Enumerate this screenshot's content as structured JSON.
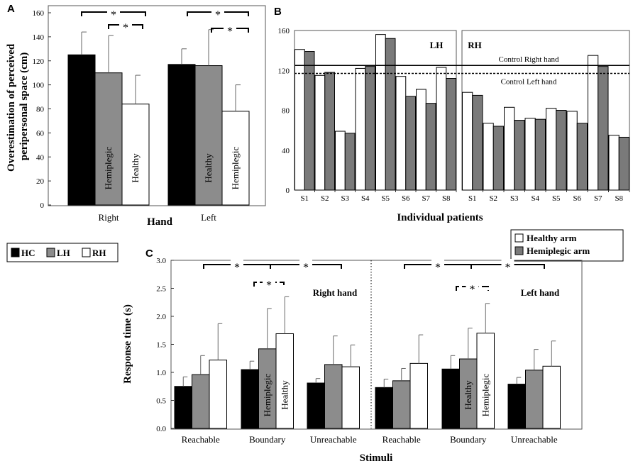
{
  "colors": {
    "HC": "#000000",
    "LH": "#8c8c8c",
    "RH": "#ffffff",
    "healthy_arm": "#ffffff",
    "hemiplegic_arm": "#7a7a7a"
  },
  "legend_groups": [
    {
      "key": "HC",
      "label": "HC"
    },
    {
      "key": "LH",
      "label": "LH"
    },
    {
      "key": "RH",
      "label": "RH"
    }
  ],
  "legend_arms": [
    {
      "key": "healthy_arm",
      "label": "Healthy arm"
    },
    {
      "key": "hemiplegic_arm",
      "label": "Hemiplegic arm"
    }
  ],
  "chart_data": [
    {
      "panel": "A",
      "type": "bar",
      "ylabel": "Overestimation of perceived peripersonal space (cm)",
      "ylabel_lines": [
        "Overestimation of perceived",
        "peripersonal space (cm)"
      ],
      "xlabel": "Hand",
      "categories": [
        "Right",
        "Left"
      ],
      "ylim": [
        0,
        160
      ],
      "yticks": [
        "0",
        "20",
        "40",
        "60",
        "80",
        "100",
        "120",
        "140",
        "160"
      ],
      "series": [
        {
          "name": "HC",
          "values": [
            125,
            117
          ],
          "errors": [
            19,
            13
          ]
        },
        {
          "name": "LH",
          "values": [
            110,
            116
          ],
          "errors": [
            31,
            30
          ]
        },
        {
          "name": "RH",
          "values": [
            84,
            78
          ],
          "errors": [
            24,
            22
          ]
        }
      ],
      "bar_text": [
        [
          "",
          "Hemiplegic",
          "Healthy"
        ],
        [
          "",
          "Healthy",
          "Hemiplegic"
        ]
      ],
      "significance": [
        "*",
        "*",
        "*",
        "*"
      ]
    },
    {
      "panel": "B",
      "type": "bar",
      "xlabel": "Individual patients",
      "ylim": [
        0,
        160
      ],
      "yticks": [
        "0",
        "40",
        "80",
        "120",
        "160"
      ],
      "groups": [
        {
          "label": "LH",
          "categories": [
            "S1",
            "S2",
            "S3",
            "S4",
            "S5",
            "S6",
            "S7",
            "S8"
          ],
          "series": [
            {
              "name": "Healthy arm",
              "values": [
                141,
                115,
                59,
                122,
                156,
                114,
                101,
                123
              ]
            },
            {
              "name": "Hemiplegic arm",
              "values": [
                139,
                118,
                57,
                124,
                152,
                94,
                87,
                112
              ]
            }
          ]
        },
        {
          "label": "RH",
          "categories": [
            "S1",
            "S2",
            "S3",
            "S4",
            "S5",
            "S6",
            "S7",
            "S8"
          ],
          "series": [
            {
              "name": "Healthy arm",
              "values": [
                98,
                67,
                83,
                72,
                82,
                79,
                135,
                55
              ]
            },
            {
              "name": "Hemiplegic arm",
              "values": [
                95,
                64,
                70,
                71,
                80,
                67,
                124,
                53
              ]
            }
          ]
        }
      ],
      "reference_lines": [
        {
          "label": "Control Right hand",
          "value": 125,
          "style": "solid"
        },
        {
          "label": "Control Left hand",
          "value": 117,
          "style": "dashed"
        }
      ]
    },
    {
      "panel": "C",
      "type": "bar",
      "ylabel": "Response time (s)",
      "xlabel": "Stimuli",
      "ylim": [
        0,
        3.0
      ],
      "yticks": [
        "0.0",
        "0.5",
        "1.0",
        "1.5",
        "2.0",
        "2.5",
        "3.0"
      ],
      "groups": [
        {
          "label": "Right hand",
          "categories": [
            "Reachable",
            "Boundary",
            "Unreachable"
          ],
          "series": [
            {
              "name": "HC",
              "values": [
                0.75,
                1.05,
                0.81
              ],
              "errors": [
                0.17,
                0.15,
                0.08
              ]
            },
            {
              "name": "LH",
              "values": [
                0.96,
                1.42,
                1.14
              ],
              "errors": [
                0.34,
                0.72,
                0.51
              ]
            },
            {
              "name": "RH",
              "values": [
                1.22,
                1.69,
                1.1
              ],
              "errors": [
                0.65,
                0.66,
                0.39
              ]
            }
          ],
          "bar_text": [
            [
              "",
              "",
              ""
            ],
            [
              "",
              "Hemiplegic",
              "Healthy"
            ],
            [
              "",
              "",
              ""
            ]
          ]
        },
        {
          "label": "Left hand",
          "categories": [
            "Reachable",
            "Boundary",
            "Unreachable"
          ],
          "series": [
            {
              "name": "HC",
              "values": [
                0.73,
                1.06,
                0.79
              ],
              "errors": [
                0.15,
                0.24,
                0.12
              ]
            },
            {
              "name": "LH",
              "values": [
                0.85,
                1.24,
                1.04
              ],
              "errors": [
                0.22,
                0.55,
                0.37
              ]
            },
            {
              "name": "RH",
              "values": [
                1.16,
                1.7,
                1.11
              ],
              "errors": [
                0.51,
                0.53,
                0.45
              ]
            }
          ],
          "bar_text": [
            [
              "",
              "",
              ""
            ],
            [
              "",
              "Healthy",
              "Hemiplegic"
            ],
            [
              "",
              "",
              ""
            ]
          ]
        }
      ],
      "significance": [
        "*",
        "*",
        "*",
        "*",
        "*",
        "*"
      ]
    }
  ]
}
